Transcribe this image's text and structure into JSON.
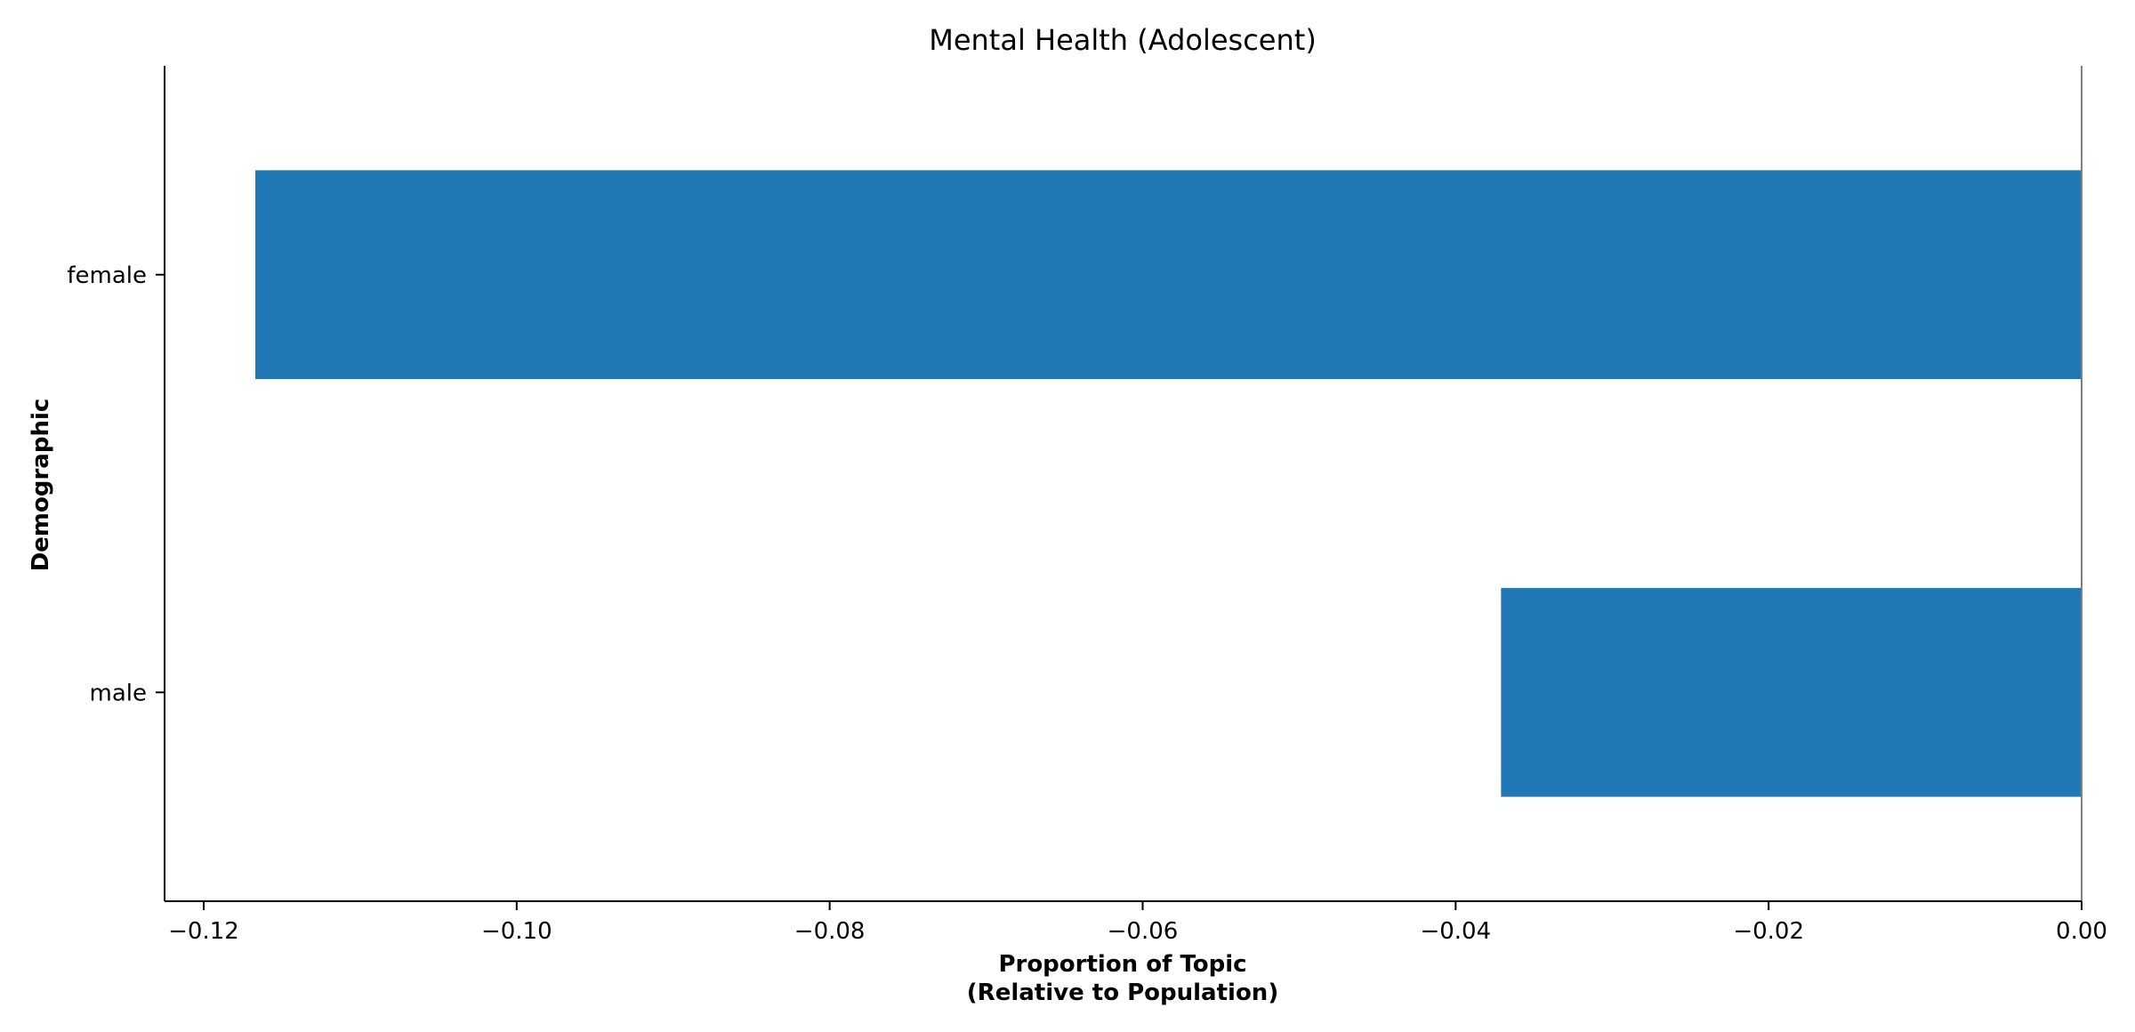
{
  "chart_data": {
    "type": "bar",
    "orientation": "horizontal",
    "title": "Mental Health (Adolescent)",
    "xlabel_lines": [
      "Proportion of Topic",
      "(Relative to Population)"
    ],
    "ylabel": "Demographic",
    "categories": [
      "female",
      "male"
    ],
    "values": [
      -0.1167,
      -0.0371
    ],
    "xlim": [
      -0.1225,
      0.0
    ],
    "xticks": [
      -0.12,
      -0.1,
      -0.08,
      -0.06,
      -0.04,
      -0.02,
      0.0
    ],
    "xtick_labels": [
      "−0.12",
      "−0.10",
      "−0.08",
      "−0.06",
      "−0.04",
      "−0.02",
      "0.00"
    ],
    "bar_color": "#1f77b4",
    "zero_line_color": "#808080",
    "grid": false,
    "legend": "none"
  }
}
